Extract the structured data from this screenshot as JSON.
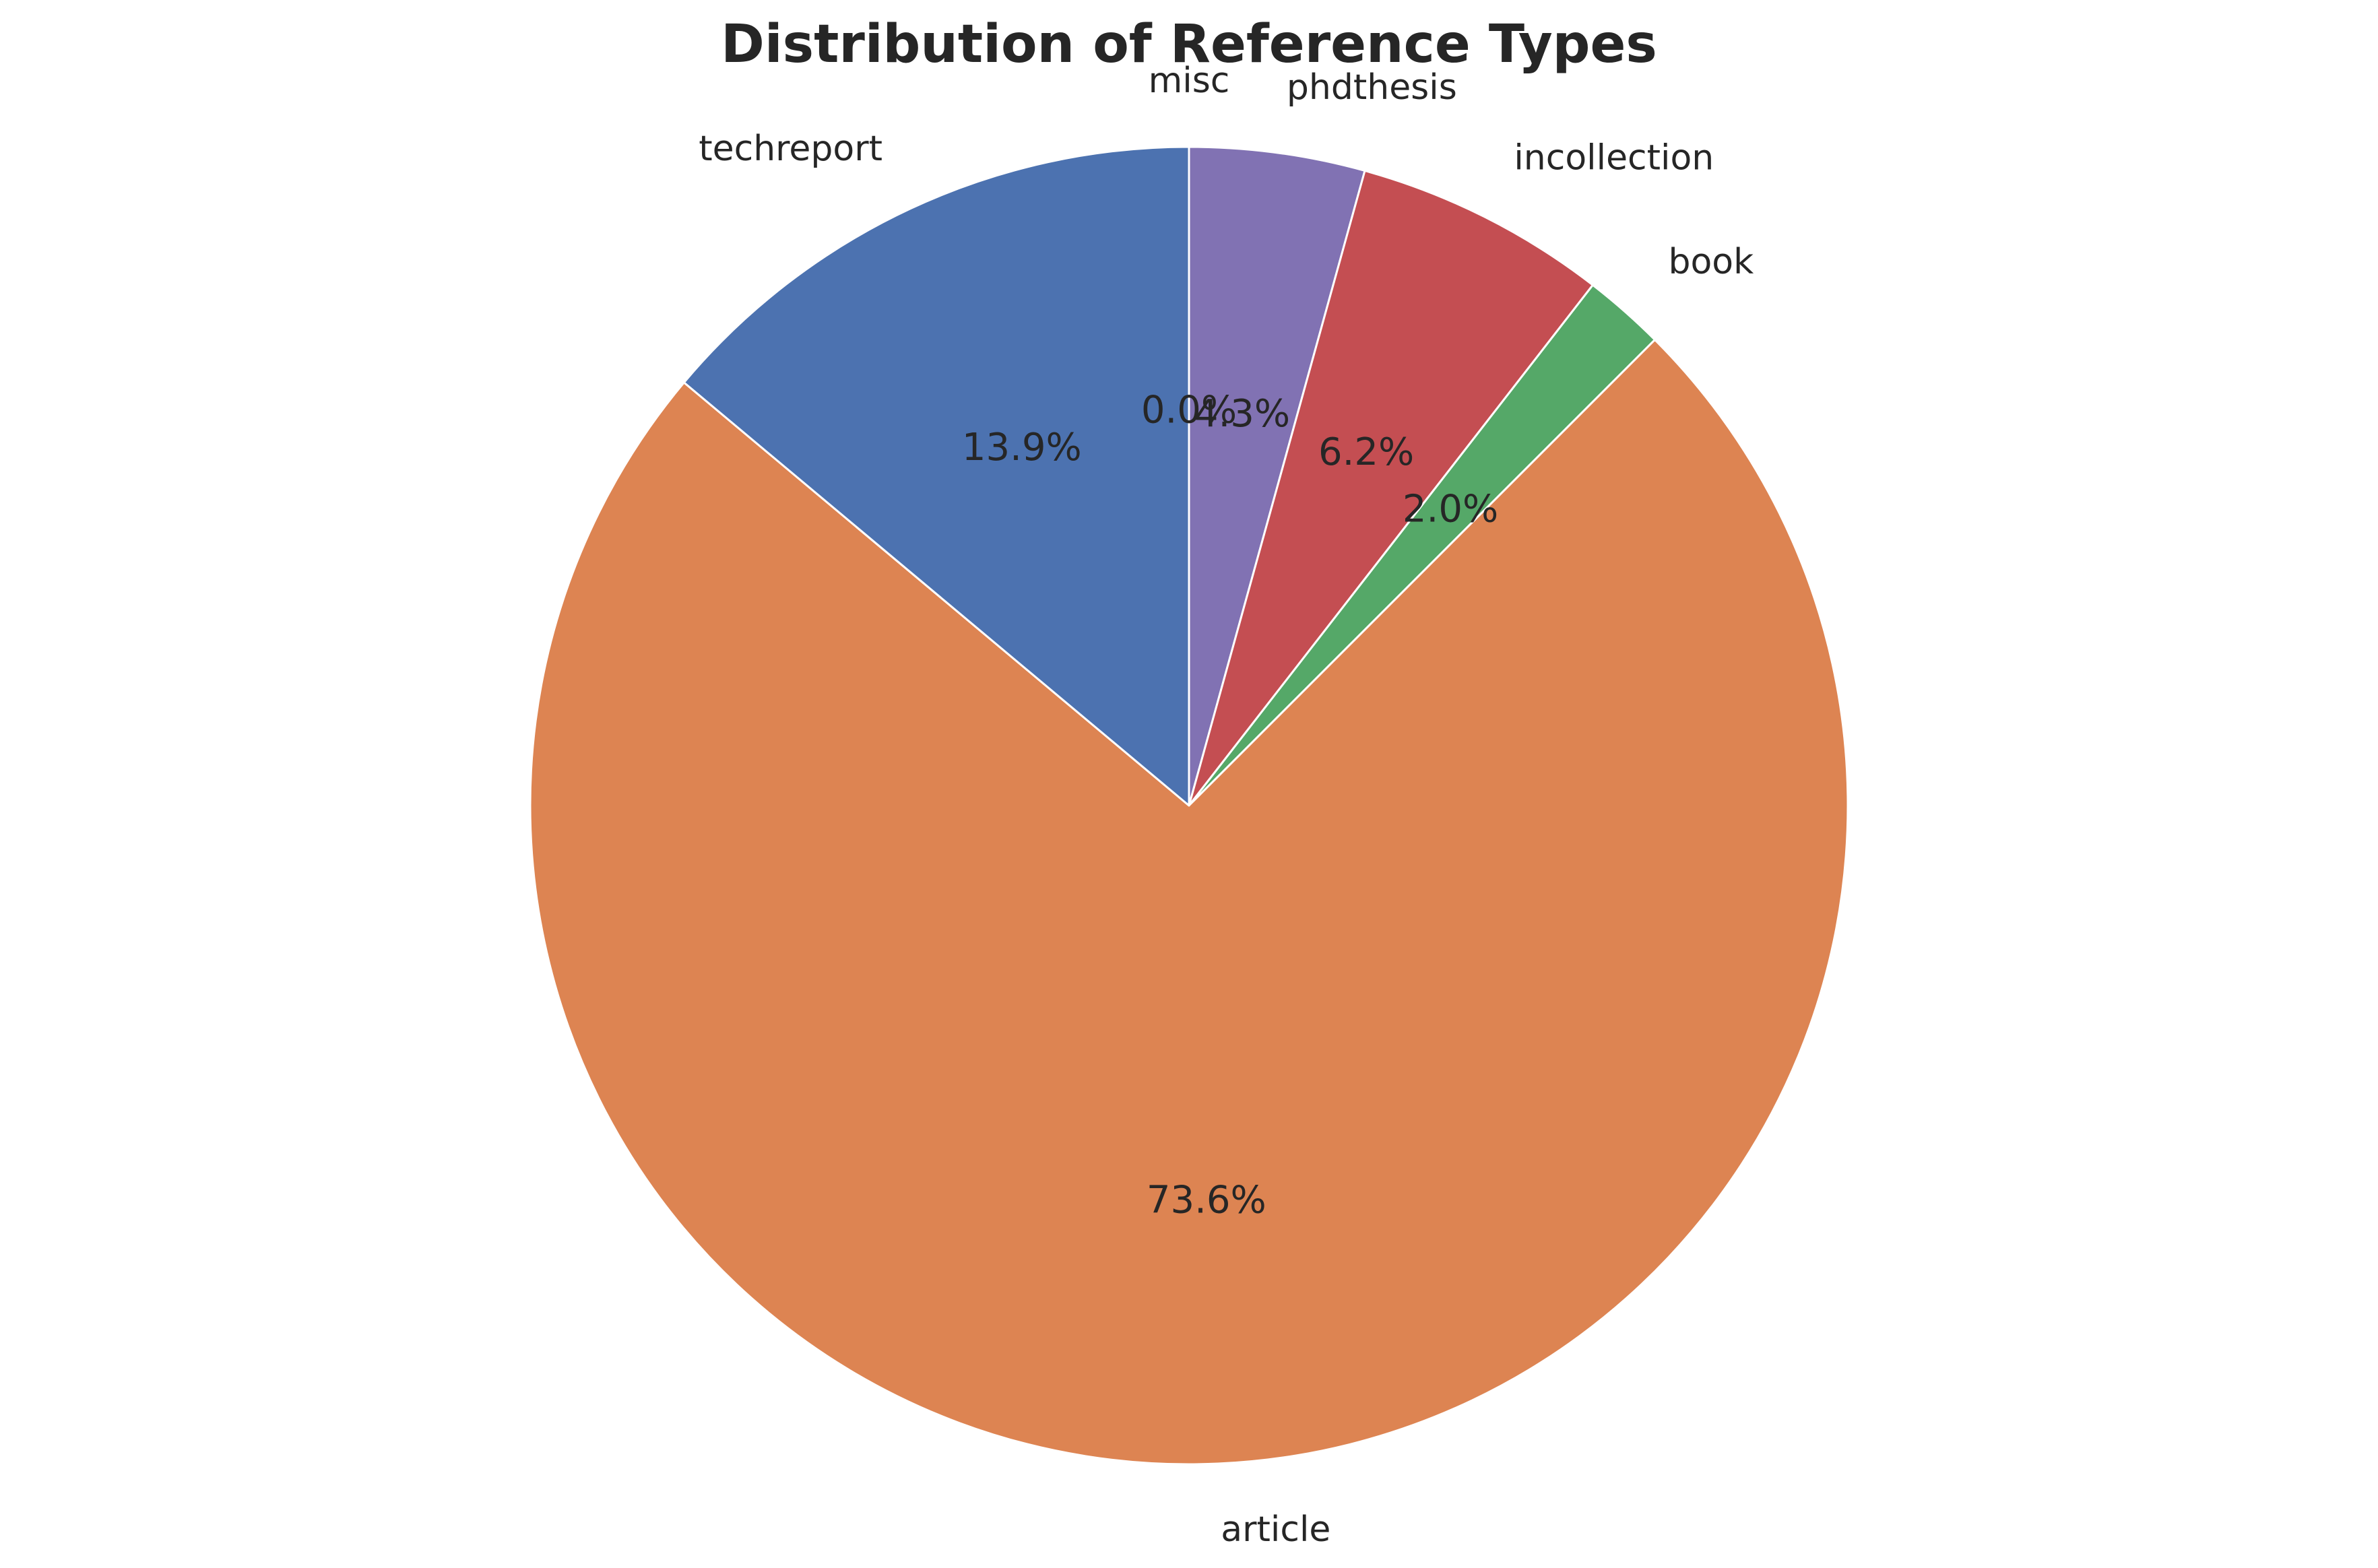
{
  "chart_data": {
    "type": "pie",
    "title": "Distribution of Reference Types",
    "start_angle_deg": 90,
    "direction": "clockwise",
    "edge_color": "#ffffff",
    "slices": [
      {
        "label": "misc",
        "value": 0.0,
        "pct_text": "0.0%",
        "color": "#4c72b0"
      },
      {
        "label": "phdthesis",
        "value": 4.3,
        "pct_text": "4.3%",
        "color": "#8172b3"
      },
      {
        "label": "incollection",
        "value": 6.2,
        "pct_text": "6.2%",
        "color": "#c44e52"
      },
      {
        "label": "book",
        "value": 2.0,
        "pct_text": "2.0%",
        "color": "#55a868"
      },
      {
        "label": "article",
        "value": 73.6,
        "pct_text": "73.6%",
        "color": "#dd8452"
      },
      {
        "label": "techreport",
        "value": 13.9,
        "pct_text": "13.9%",
        "color": "#4c72b0"
      }
    ]
  }
}
